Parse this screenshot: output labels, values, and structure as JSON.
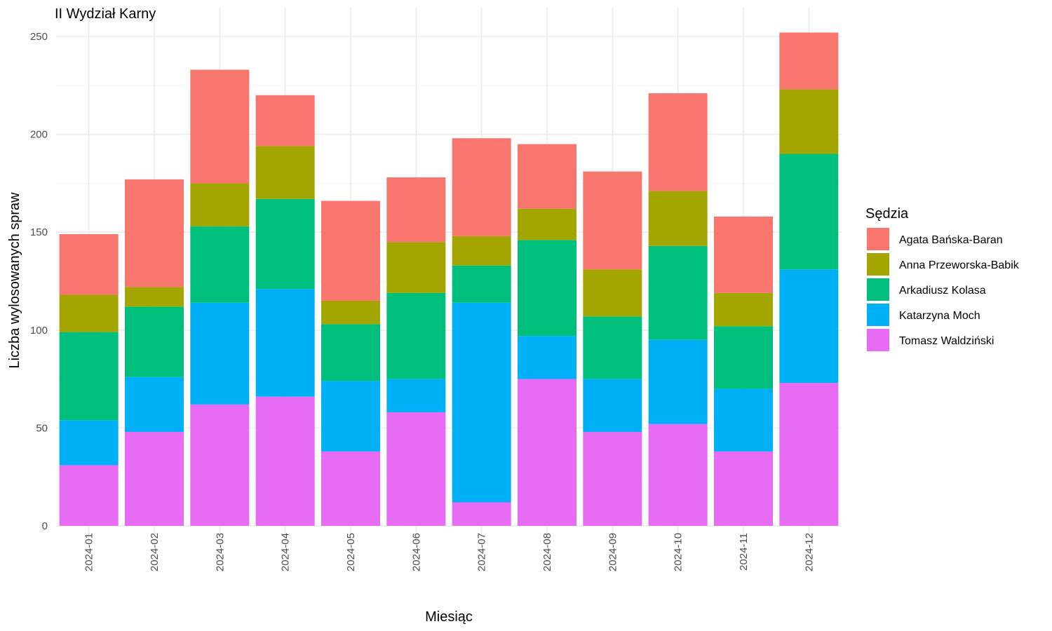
{
  "chart_data": {
    "type": "bar",
    "stacked": true,
    "title": "II Wydział Karny",
    "xlabel": "Miesiąc",
    "ylabel": "Liczba wylosowanych spraw",
    "ylim": [
      0,
      260
    ],
    "y_ticks": [
      0,
      50,
      100,
      150,
      200,
      250
    ],
    "grid": true,
    "legend_title": "Sędzia",
    "legend_position": "right",
    "categories": [
      "2024-01",
      "2024-02",
      "2024-03",
      "2024-04",
      "2024-05",
      "2024-06",
      "2024-07",
      "2024-08",
      "2024-09",
      "2024-10",
      "2024-11",
      "2024-12"
    ],
    "series": [
      {
        "name": "Agata Bańska-Baran",
        "color": "#F8766D",
        "values": [
          31,
          55,
          58,
          26,
          51,
          33,
          50,
          33,
          50,
          50,
          39,
          29
        ]
      },
      {
        "name": "Anna Przeworska-Babik",
        "color": "#A3A500",
        "values": [
          19,
          10,
          22,
          27,
          12,
          26,
          15,
          16,
          24,
          28,
          17,
          33
        ]
      },
      {
        "name": "Arkadiusz Kolasa",
        "color": "#00BF7D",
        "values": [
          45,
          36,
          39,
          46,
          29,
          44,
          19,
          49,
          32,
          48,
          32,
          59
        ]
      },
      {
        "name": "Katarzyna Moch",
        "color": "#00B0F6",
        "values": [
          23,
          28,
          52,
          55,
          36,
          17,
          102,
          22,
          27,
          43,
          32,
          58
        ]
      },
      {
        "name": "Tomasz Waldziński",
        "color": "#E76BF3",
        "values": [
          31,
          48,
          62,
          66,
          38,
          58,
          12,
          75,
          48,
          52,
          38,
          73
        ]
      }
    ]
  }
}
